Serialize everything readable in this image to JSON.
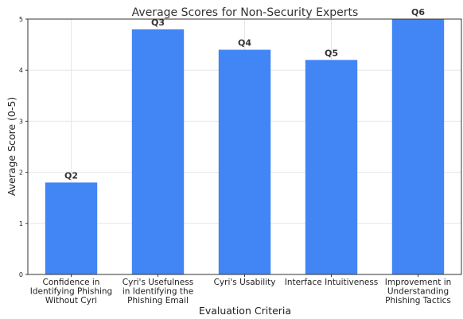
{
  "chart_data": {
    "type": "bar",
    "title": "Average Scores for Non-Security Experts",
    "xlabel": "Evaluation Criteria",
    "ylabel": "Average Score (0-5)",
    "ylim": [
      0,
      5
    ],
    "yticks": [
      "0",
      "1",
      "2",
      "3",
      "4",
      "5"
    ],
    "grid": true,
    "categories": [
      [
        "Confidence in",
        "Identifying Phishing",
        "Without Cyri"
      ],
      [
        "Cyri's Usefulness",
        "in Identifying the",
        "Phishing Email"
      ],
      [
        "Cyri's Usability"
      ],
      [
        "Interface Intuitiveness"
      ],
      [
        "Improvement in",
        "Understanding",
        "Phishing Tactics"
      ]
    ],
    "bar_labels": [
      "Q2",
      "Q3",
      "Q4",
      "Q5",
      "Q6"
    ],
    "values": [
      1.8,
      4.8,
      4.4,
      4.2,
      5.0
    ],
    "colors": {
      "bar": "#4285f4",
      "grid": "#e6e6e6",
      "axis": "#333333"
    }
  }
}
